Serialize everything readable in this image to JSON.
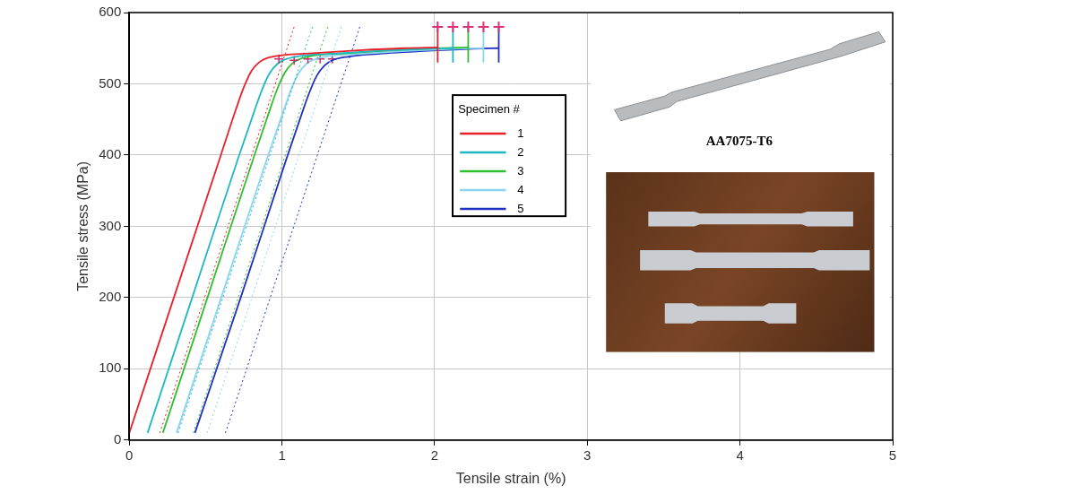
{
  "chart_data": {
    "type": "line",
    "x_label": "Tensile strain (%)",
    "y_label": "Tensile stress (MPa)",
    "xlim": [
      0,
      5
    ],
    "ylim": [
      0,
      600
    ],
    "xticks": [
      0,
      1,
      2,
      3,
      4,
      5
    ],
    "yticks": [
      0,
      100,
      200,
      300,
      400,
      500,
      600
    ],
    "grid": true,
    "legend": "center",
    "legend_title": "Specimen #",
    "annotations": [
      {
        "text": "AA7075-T6"
      }
    ],
    "series": [
      {
        "name": "1",
        "color": "#e8202a",
        "x": [
          0,
          0.3,
          0.6,
          0.7,
          0.75,
          0.8,
          0.85,
          0.9,
          1.0,
          1.2,
          1.5,
          1.8,
          2.02
        ],
        "values": [
          10,
          205,
          400,
          465,
          495,
          518,
          530,
          536,
          540,
          543,
          547,
          550,
          551
        ],
        "yield_point": {
          "x": 0.98,
          "y": 535
        },
        "offset_line": {
          "x": [
            0.2,
            1.08
          ],
          "values": [
            10,
            580
          ]
        },
        "break": {
          "x": [
            2.02,
            2.02
          ],
          "values": [
            530,
            580
          ]
        }
      },
      {
        "name": "2",
        "color": "#1fb8c2",
        "x": [
          0.12,
          0.42,
          0.72,
          0.82,
          0.87,
          0.92,
          0.97,
          1.02,
          1.12,
          1.32,
          1.62,
          1.92,
          2.12
        ],
        "values": [
          10,
          205,
          400,
          462,
          492,
          515,
          528,
          534,
          539,
          542,
          546,
          549,
          550
        ],
        "yield_point": {
          "x": 1.08,
          "y": 533
        },
        "offset_line": {
          "x": [
            0.32,
            1.2
          ],
          "values": [
            10,
            580
          ]
        },
        "break": {
          "x": [
            2.12,
            2.12
          ],
          "values": [
            530,
            580
          ]
        }
      },
      {
        "name": "3",
        "color": "#2ec02e",
        "x": [
          0.22,
          0.52,
          0.82,
          0.92,
          0.97,
          1.02,
          1.07,
          1.12,
          1.22,
          1.42,
          1.72,
          2.02,
          2.22
        ],
        "values": [
          10,
          205,
          400,
          463,
          493,
          516,
          529,
          535,
          540,
          543,
          547,
          550,
          551
        ],
        "yield_point": {
          "x": 1.17,
          "y": 535
        },
        "offset_line": {
          "x": [
            0.42,
            1.3
          ],
          "values": [
            10,
            580
          ]
        },
        "break": {
          "x": [
            2.22,
            2.22
          ],
          "values": [
            530,
            580
          ]
        }
      },
      {
        "name": "4",
        "color": "#8cd3f0",
        "x": [
          0.31,
          0.61,
          0.91,
          1.01,
          1.06,
          1.11,
          1.16,
          1.21,
          1.31,
          1.51,
          1.81,
          2.11,
          2.32
        ],
        "values": [
          10,
          205,
          400,
          462,
          492,
          515,
          528,
          534,
          539,
          542,
          546,
          549,
          550
        ],
        "yield_point": {
          "x": 1.25,
          "y": 535
        },
        "offset_line": {
          "x": [
            0.51,
            1.39
          ],
          "values": [
            10,
            580
          ]
        },
        "break": {
          "x": [
            2.32,
            2.32
          ],
          "values": [
            530,
            580
          ]
        }
      },
      {
        "name": "5",
        "color": "#2030c0",
        "x": [
          0.43,
          0.73,
          1.03,
          1.13,
          1.18,
          1.23,
          1.28,
          1.33,
          1.43,
          1.63,
          1.93,
          2.23,
          2.42
        ],
        "values": [
          10,
          200,
          395,
          458,
          488,
          512,
          526,
          533,
          538,
          542,
          546,
          549,
          550
        ],
        "yield_point": {
          "x": 1.33,
          "y": 535
        },
        "offset_line": {
          "x": [
            0.63,
            1.51
          ],
          "values": [
            10,
            580
          ]
        },
        "break": {
          "x": [
            2.42,
            2.42
          ],
          "values": [
            530,
            580
          ]
        }
      }
    ]
  }
}
